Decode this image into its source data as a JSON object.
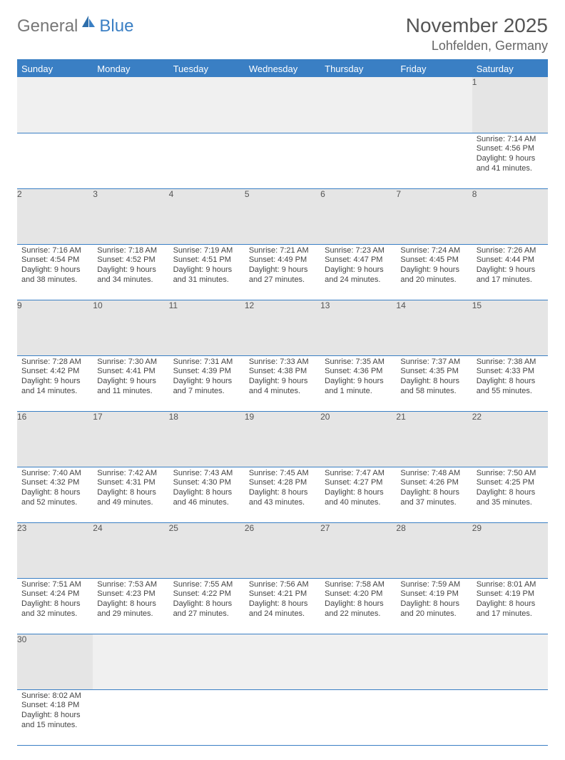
{
  "brand": {
    "part1": "General",
    "part2": "Blue"
  },
  "title": "November 2025",
  "location": "Lohfelden, Germany",
  "headerColor": "#3a7fc4",
  "dayHeaders": [
    "Sunday",
    "Monday",
    "Tuesday",
    "Wednesday",
    "Thursday",
    "Friday",
    "Saturday"
  ],
  "weeks": [
    {
      "nums": [
        "",
        "",
        "",
        "",
        "",
        "",
        "1"
      ],
      "cells": [
        null,
        null,
        null,
        null,
        null,
        null,
        {
          "sunrise": "Sunrise: 7:14 AM",
          "sunset": "Sunset: 4:56 PM",
          "daylight": "Daylight: 9 hours and 41 minutes."
        }
      ]
    },
    {
      "nums": [
        "2",
        "3",
        "4",
        "5",
        "6",
        "7",
        "8"
      ],
      "cells": [
        {
          "sunrise": "Sunrise: 7:16 AM",
          "sunset": "Sunset: 4:54 PM",
          "daylight": "Daylight: 9 hours and 38 minutes."
        },
        {
          "sunrise": "Sunrise: 7:18 AM",
          "sunset": "Sunset: 4:52 PM",
          "daylight": "Daylight: 9 hours and 34 minutes."
        },
        {
          "sunrise": "Sunrise: 7:19 AM",
          "sunset": "Sunset: 4:51 PM",
          "daylight": "Daylight: 9 hours and 31 minutes."
        },
        {
          "sunrise": "Sunrise: 7:21 AM",
          "sunset": "Sunset: 4:49 PM",
          "daylight": "Daylight: 9 hours and 27 minutes."
        },
        {
          "sunrise": "Sunrise: 7:23 AM",
          "sunset": "Sunset: 4:47 PM",
          "daylight": "Daylight: 9 hours and 24 minutes."
        },
        {
          "sunrise": "Sunrise: 7:24 AM",
          "sunset": "Sunset: 4:45 PM",
          "daylight": "Daylight: 9 hours and 20 minutes."
        },
        {
          "sunrise": "Sunrise: 7:26 AM",
          "sunset": "Sunset: 4:44 PM",
          "daylight": "Daylight: 9 hours and 17 minutes."
        }
      ]
    },
    {
      "nums": [
        "9",
        "10",
        "11",
        "12",
        "13",
        "14",
        "15"
      ],
      "cells": [
        {
          "sunrise": "Sunrise: 7:28 AM",
          "sunset": "Sunset: 4:42 PM",
          "daylight": "Daylight: 9 hours and 14 minutes."
        },
        {
          "sunrise": "Sunrise: 7:30 AM",
          "sunset": "Sunset: 4:41 PM",
          "daylight": "Daylight: 9 hours and 11 minutes."
        },
        {
          "sunrise": "Sunrise: 7:31 AM",
          "sunset": "Sunset: 4:39 PM",
          "daylight": "Daylight: 9 hours and 7 minutes."
        },
        {
          "sunrise": "Sunrise: 7:33 AM",
          "sunset": "Sunset: 4:38 PM",
          "daylight": "Daylight: 9 hours and 4 minutes."
        },
        {
          "sunrise": "Sunrise: 7:35 AM",
          "sunset": "Sunset: 4:36 PM",
          "daylight": "Daylight: 9 hours and 1 minute."
        },
        {
          "sunrise": "Sunrise: 7:37 AM",
          "sunset": "Sunset: 4:35 PM",
          "daylight": "Daylight: 8 hours and 58 minutes."
        },
        {
          "sunrise": "Sunrise: 7:38 AM",
          "sunset": "Sunset: 4:33 PM",
          "daylight": "Daylight: 8 hours and 55 minutes."
        }
      ]
    },
    {
      "nums": [
        "16",
        "17",
        "18",
        "19",
        "20",
        "21",
        "22"
      ],
      "cells": [
        {
          "sunrise": "Sunrise: 7:40 AM",
          "sunset": "Sunset: 4:32 PM",
          "daylight": "Daylight: 8 hours and 52 minutes."
        },
        {
          "sunrise": "Sunrise: 7:42 AM",
          "sunset": "Sunset: 4:31 PM",
          "daylight": "Daylight: 8 hours and 49 minutes."
        },
        {
          "sunrise": "Sunrise: 7:43 AM",
          "sunset": "Sunset: 4:30 PM",
          "daylight": "Daylight: 8 hours and 46 minutes."
        },
        {
          "sunrise": "Sunrise: 7:45 AM",
          "sunset": "Sunset: 4:28 PM",
          "daylight": "Daylight: 8 hours and 43 minutes."
        },
        {
          "sunrise": "Sunrise: 7:47 AM",
          "sunset": "Sunset: 4:27 PM",
          "daylight": "Daylight: 8 hours and 40 minutes."
        },
        {
          "sunrise": "Sunrise: 7:48 AM",
          "sunset": "Sunset: 4:26 PM",
          "daylight": "Daylight: 8 hours and 37 minutes."
        },
        {
          "sunrise": "Sunrise: 7:50 AM",
          "sunset": "Sunset: 4:25 PM",
          "daylight": "Daylight: 8 hours and 35 minutes."
        }
      ]
    },
    {
      "nums": [
        "23",
        "24",
        "25",
        "26",
        "27",
        "28",
        "29"
      ],
      "cells": [
        {
          "sunrise": "Sunrise: 7:51 AM",
          "sunset": "Sunset: 4:24 PM",
          "daylight": "Daylight: 8 hours and 32 minutes."
        },
        {
          "sunrise": "Sunrise: 7:53 AM",
          "sunset": "Sunset: 4:23 PM",
          "daylight": "Daylight: 8 hours and 29 minutes."
        },
        {
          "sunrise": "Sunrise: 7:55 AM",
          "sunset": "Sunset: 4:22 PM",
          "daylight": "Daylight: 8 hours and 27 minutes."
        },
        {
          "sunrise": "Sunrise: 7:56 AM",
          "sunset": "Sunset: 4:21 PM",
          "daylight": "Daylight: 8 hours and 24 minutes."
        },
        {
          "sunrise": "Sunrise: 7:58 AM",
          "sunset": "Sunset: 4:20 PM",
          "daylight": "Daylight: 8 hours and 22 minutes."
        },
        {
          "sunrise": "Sunrise: 7:59 AM",
          "sunset": "Sunset: 4:19 PM",
          "daylight": "Daylight: 8 hours and 20 minutes."
        },
        {
          "sunrise": "Sunrise: 8:01 AM",
          "sunset": "Sunset: 4:19 PM",
          "daylight": "Daylight: 8 hours and 17 minutes."
        }
      ]
    },
    {
      "nums": [
        "30",
        "",
        "",
        "",
        "",
        "",
        ""
      ],
      "cells": [
        {
          "sunrise": "Sunrise: 8:02 AM",
          "sunset": "Sunset: 4:18 PM",
          "daylight": "Daylight: 8 hours and 15 minutes."
        },
        null,
        null,
        null,
        null,
        null,
        null
      ]
    }
  ]
}
